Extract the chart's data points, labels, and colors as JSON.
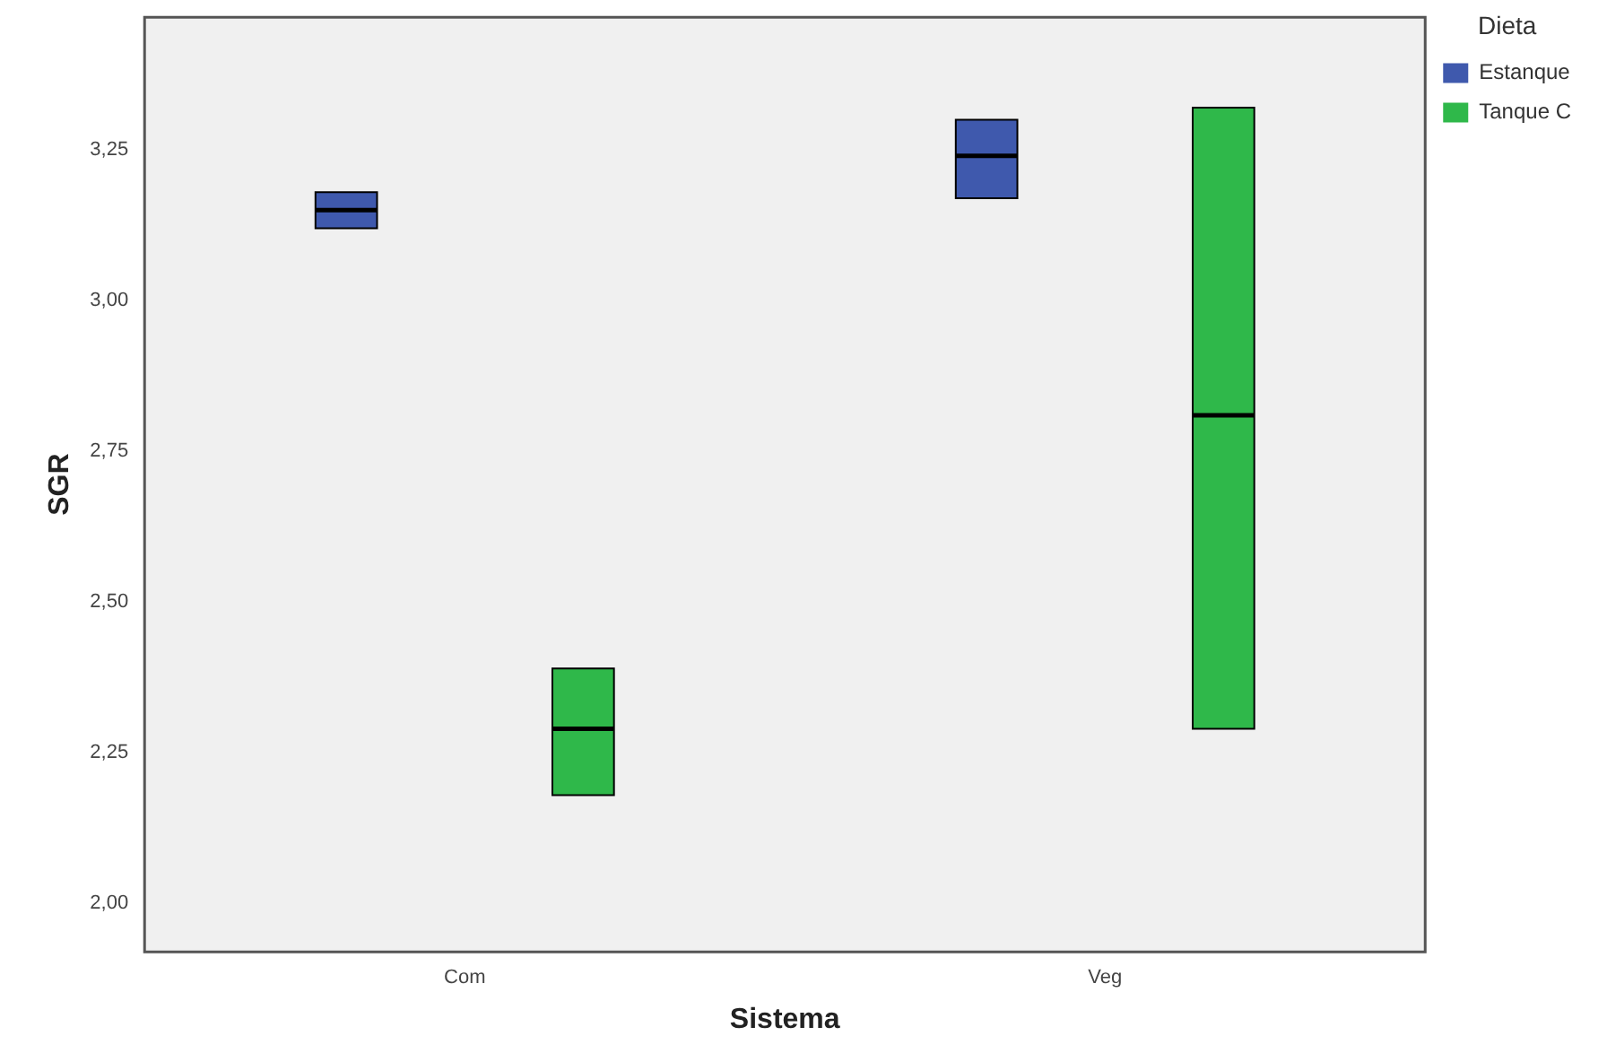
{
  "chart_data": {
    "type": "box",
    "xlabel": "Sistema",
    "ylabel": "SGR",
    "legend_title": "Dieta",
    "categories": [
      "Com",
      "Veg"
    ],
    "ylim": [
      1.92,
      3.47
    ],
    "yticks": [
      {
        "value": 2.0,
        "label": "2,00"
      },
      {
        "value": 2.25,
        "label": "2,25"
      },
      {
        "value": 2.5,
        "label": "2,50"
      },
      {
        "value": 2.75,
        "label": "2,75"
      },
      {
        "value": 3.0,
        "label": "3,00"
      },
      {
        "value": 3.25,
        "label": "3,25"
      }
    ],
    "grid": false,
    "legend": "top right",
    "series": [
      {
        "name": "Estanque",
        "color": "#3f59ad",
        "boxes": [
          {
            "low": 3.12,
            "q1": 3.12,
            "median": 3.15,
            "q3": 3.18,
            "high": 3.18
          },
          {
            "low": 3.17,
            "q1": 3.17,
            "median": 3.24,
            "q3": 3.3,
            "high": 3.3
          }
        ]
      },
      {
        "name": "Tanque C",
        "color": "#2fb84a",
        "boxes": [
          {
            "low": 2.18,
            "q1": 2.18,
            "median": 2.29,
            "q3": 2.39,
            "high": 2.39
          },
          {
            "low": 2.29,
            "q1": 2.29,
            "median": 2.81,
            "q3": 3.32,
            "high": 3.32
          }
        ]
      }
    ]
  }
}
